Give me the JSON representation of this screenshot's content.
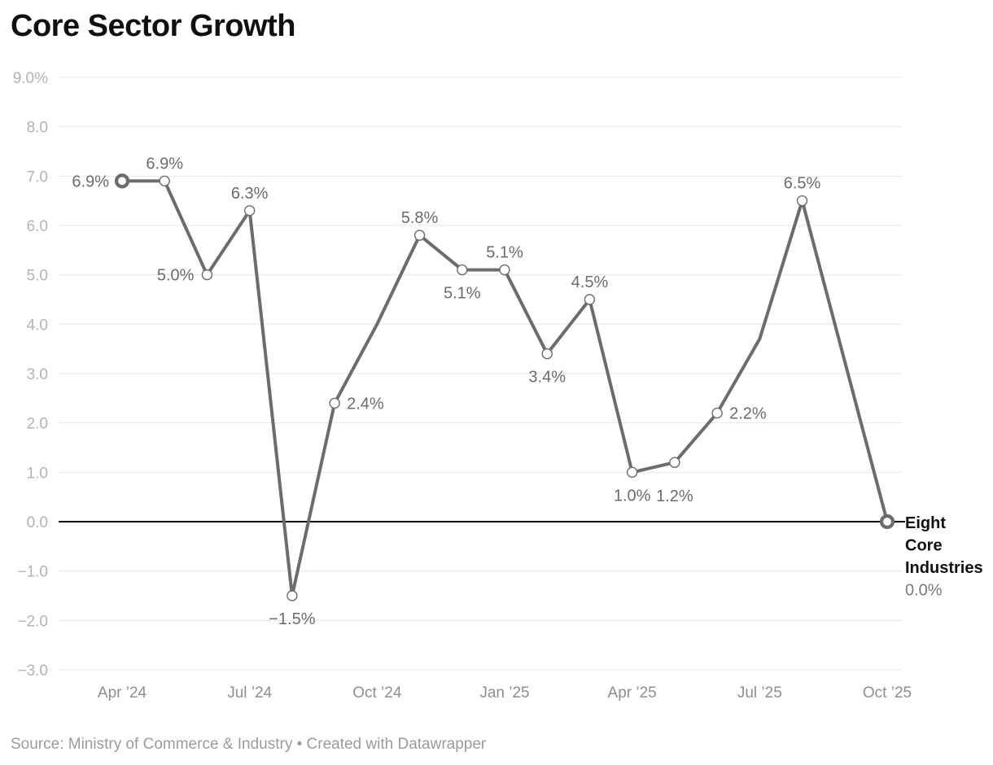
{
  "title": "Core Sector Growth",
  "footer": "Source: Ministry of Commerce & Industry • Created with Datawrapper",
  "colors": {
    "line": "#6c6c6c",
    "marker_fill": "#ffffff",
    "grid": "#e7e7e7",
    "zero_line": "#000000",
    "y_tick_label": "#b3b3b3",
    "x_tick_label": "#8e8e8e",
    "data_label": "#6b6b6b",
    "title_text": "#101010",
    "footer_text": "#9b9b9b",
    "annotation_name": "#111111",
    "annotation_value": "#7a7a7a"
  },
  "chart_data": {
    "type": "line",
    "title": "Core Sector Growth",
    "series_name": "Eight Core Industries",
    "xlabel": "",
    "ylabel": "",
    "ylim": [
      -3.0,
      9.0
    ],
    "grid": true,
    "x_ticks": [
      {
        "label": "Apr ’24",
        "month_index": 0
      },
      {
        "label": "Jul ’24",
        "month_index": 3
      },
      {
        "label": "Oct ’24",
        "month_index": 6
      },
      {
        "label": "Jan ’25",
        "month_index": 9
      },
      {
        "label": "Apr ’25",
        "month_index": 12
      },
      {
        "label": "Jul ’25",
        "month_index": 15
      },
      {
        "label": "Oct ’25",
        "month_index": 18
      }
    ],
    "y_ticks": [
      {
        "label": "9.0%",
        "value": 9
      },
      {
        "label": "8.0",
        "value": 8
      },
      {
        "label": "7.0",
        "value": 7
      },
      {
        "label": "6.0",
        "value": 6
      },
      {
        "label": "5.0",
        "value": 5
      },
      {
        "label": "4.0",
        "value": 4
      },
      {
        "label": "3.0",
        "value": 3
      },
      {
        "label": "2.0",
        "value": 2
      },
      {
        "label": "1.0",
        "value": 1
      },
      {
        "label": "0.0",
        "value": 0
      },
      {
        "label": "−1.0",
        "value": -1
      },
      {
        "label": "−2.0",
        "value": -2
      },
      {
        "label": "−3.0",
        "value": -3
      }
    ],
    "points": [
      {
        "month": "Apr ’24",
        "month_index": 0,
        "value": 6.9,
        "label": "6.9%",
        "label_pos": "left",
        "marker": "bold"
      },
      {
        "month": "May ’24",
        "month_index": 1,
        "value": 6.9,
        "label": "6.9%",
        "label_pos": "above",
        "marker": "normal"
      },
      {
        "month": "Jun ’24",
        "month_index": 2,
        "value": 5.0,
        "label": "5.0%",
        "label_pos": "left",
        "marker": "normal"
      },
      {
        "month": "Jul ’24",
        "month_index": 3,
        "value": 6.3,
        "label": "6.3%",
        "label_pos": "above",
        "marker": "normal"
      },
      {
        "month": "Aug ’24",
        "month_index": 4,
        "value": -1.5,
        "label": "−1.5%",
        "label_pos": "below",
        "marker": "normal"
      },
      {
        "month": "Sep ’24",
        "month_index": 5,
        "value": 2.4,
        "label": "2.4%",
        "label_pos": "right",
        "marker": "normal"
      },
      {
        "month": "Oct ’24",
        "month_index": 6,
        "value": 4.0,
        "label": null,
        "label_pos": null,
        "marker": "none"
      },
      {
        "month": "Nov ’24",
        "month_index": 7,
        "value": 5.8,
        "label": "5.8%",
        "label_pos": "above",
        "marker": "normal"
      },
      {
        "month": "Dec ’24",
        "month_index": 8,
        "value": 5.1,
        "label": "5.1%",
        "label_pos": "below",
        "marker": "normal"
      },
      {
        "month": "Jan ’25",
        "month_index": 9,
        "value": 5.1,
        "label": "5.1%",
        "label_pos": "above",
        "marker": "normal"
      },
      {
        "month": "Feb ’25",
        "month_index": 10,
        "value": 3.4,
        "label": "3.4%",
        "label_pos": "below",
        "marker": "normal"
      },
      {
        "month": "Mar ’25",
        "month_index": 11,
        "value": 4.5,
        "label": "4.5%",
        "label_pos": "above",
        "marker": "normal"
      },
      {
        "month": "Apr ’25",
        "month_index": 12,
        "value": 1.0,
        "label": "1.0%",
        "label_pos": "below",
        "marker": "normal"
      },
      {
        "month": "May ’25",
        "month_index": 13,
        "value": 1.2,
        "label": "1.2%",
        "label_pos": "below",
        "label_dy": 41,
        "marker": "normal"
      },
      {
        "month": "Jun ’25",
        "month_index": 14,
        "value": 2.2,
        "label": "2.2%",
        "label_pos": "right",
        "marker": "normal"
      },
      {
        "month": "Jul ’25",
        "month_index": 15,
        "value": 3.7,
        "label": null,
        "label_pos": null,
        "marker": "none"
      },
      {
        "month": "Aug ’25",
        "month_index": 16,
        "value": 6.5,
        "label": "6.5%",
        "label_pos": "above",
        "marker": "normal"
      },
      {
        "month": "Oct ’25",
        "month_index": 18,
        "value": 0.0,
        "label": "0.0%",
        "label_pos": "annotation",
        "marker": "bold"
      }
    ],
    "annotation": {
      "name": "Eight Core Industries",
      "value_label": "0.0%"
    },
    "legend_position": "none"
  }
}
